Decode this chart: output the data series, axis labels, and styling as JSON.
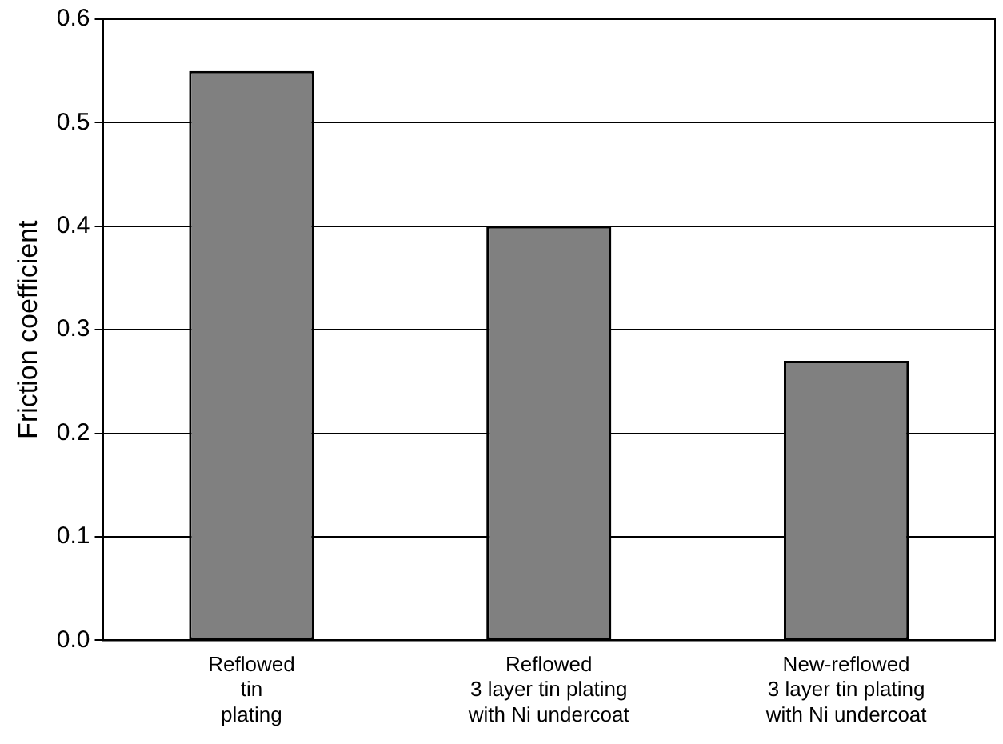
{
  "chart_data": {
    "type": "bar",
    "ylabel": "Friction coefficient",
    "categories": [
      "Reflowed\ntin\nplating",
      "Reflowed\n3 layer tin plating\nwith Ni undercoat",
      "New-reflowed\n3 layer tin plating\nwith Ni undercoat"
    ],
    "values": [
      0.55,
      0.4,
      0.27
    ],
    "color": "#808080",
    "ylim": [
      0,
      0.6
    ],
    "yticks": [
      {
        "value": 0,
        "label": "0.0"
      },
      0.1,
      0.2,
      0.3,
      0.4,
      0.5,
      0.6
    ],
    "grid": "y",
    "legend": false
  }
}
